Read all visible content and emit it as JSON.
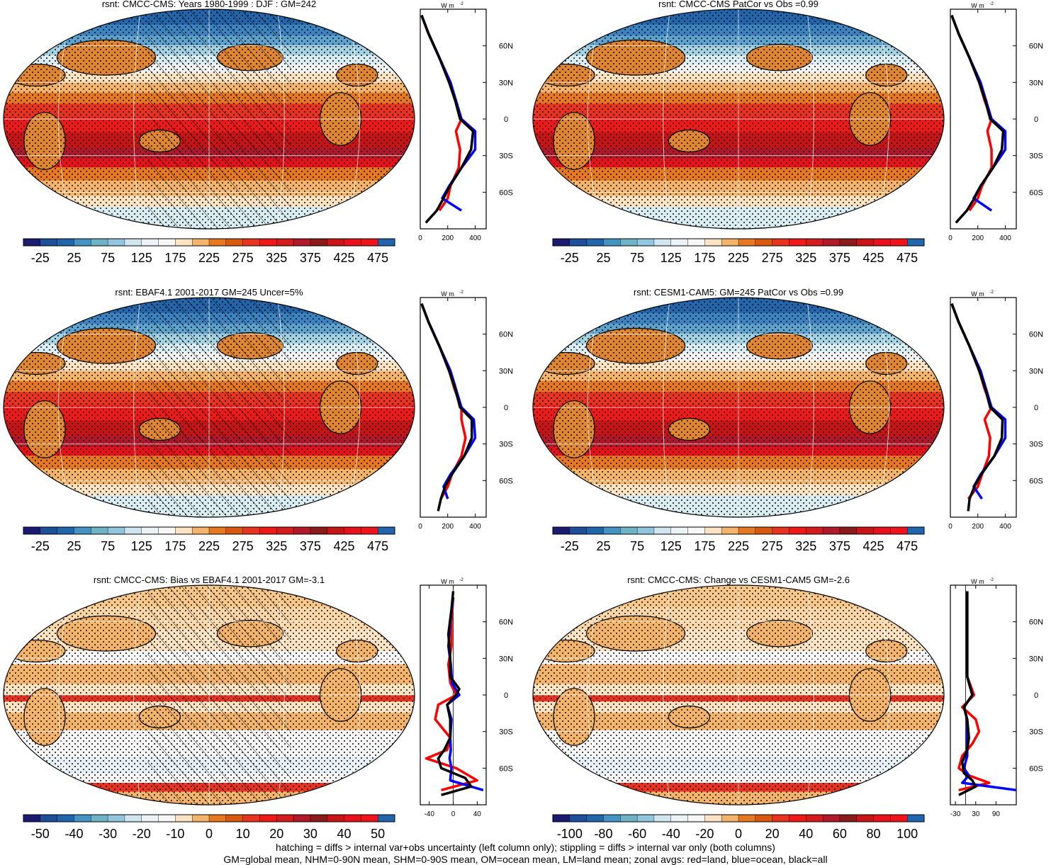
{
  "figure": {
    "footer_line1": "hatching = diffs > internal var+obs uncertainty (left column only); stippling = diffs > internal var only (both columns)",
    "footer_line2": "GM=global mean, NHM=0-90N mean, SHM=0-90S mean, OM=ocean mean, LM=land mean; zonal avgs: red=land, blue=ocean, black=all"
  },
  "colormaps": {
    "absolute": [
      "#1b1b6f",
      "#1d4f9a",
      "#2166ac",
      "#4393c3",
      "#6fb3c6",
      "#92c5de",
      "#d1e5f0",
      "#ecf3f7",
      "#f7f7f7",
      "#fbe3c4",
      "#f4b56b",
      "#e6791f",
      "#d8590e",
      "#e8331f",
      "#ef1a18",
      "#d51c1c",
      "#b2182b",
      "#8b1a1a",
      "#c81414",
      "#e8101a",
      "#f0141a",
      "#2166ac"
    ],
    "difference": [
      "#1b1b6f",
      "#1d4f9a",
      "#2166ac",
      "#4393c3",
      "#6fb3c6",
      "#92c5de",
      "#d1e5f0",
      "#ecf3f7",
      "#f7f7f7",
      "#fbe3c4",
      "#f4b56b",
      "#e6791f",
      "#d8590e",
      "#e8331f",
      "#ef1a18",
      "#d51c1c",
      "#b2182b",
      "#8b1a1a",
      "#c81414",
      "#e8101a",
      "#f0141a",
      "#2166ac"
    ],
    "line_colors": {
      "land": "#ff0000",
      "ocean": "#0000ff",
      "all": "#000000"
    }
  },
  "chart_data": [
    {
      "type": "heatmap",
      "title": "rsnt: CMCC-CMS: Years 1980-1999 : DJF : GM=242",
      "map_kind": "absolute",
      "hatching": true,
      "stippling": true,
      "colorbar_ticks": [
        "-25",
        "25",
        "75",
        "125",
        "175",
        "225",
        "275",
        "325",
        "375",
        "425",
        "475"
      ],
      "zonal": {
        "type": "line",
        "unit": "W m",
        "unit_sup": "-2",
        "xticks": [
          "0",
          "200",
          "400"
        ],
        "xlim": [
          0,
          480
        ],
        "yticks": [
          "60N",
          "30N",
          "0",
          "30S",
          "60S"
        ],
        "ylim": [
          -90,
          90
        ],
        "series": [
          {
            "name": "land",
            "lat": [
              -75,
              -65,
              -55,
              -40,
              -25,
              -10,
              0,
              15,
              30,
              50,
              70,
              85
            ],
            "values": [
              140,
              200,
              220,
              280,
              290,
              260,
              300,
              260,
              220,
              140,
              60,
              10
            ]
          },
          {
            "name": "ocean",
            "lat": [
              -75,
              -65,
              -55,
              -40,
              -25,
              -10,
              0,
              15,
              30,
              50,
              70,
              85
            ],
            "values": [
              300,
              160,
              210,
              300,
              400,
              400,
              300,
              260,
              220,
              140,
              60,
              10
            ]
          },
          {
            "name": "all",
            "lat": [
              -85,
              -75,
              -65,
              -55,
              -40,
              -25,
              -10,
              0,
              15,
              30,
              50,
              70,
              85
            ],
            "values": [
              40,
              120,
              170,
              215,
              300,
              370,
              385,
              290,
              255,
              210,
              140,
              60,
              10
            ]
          }
        ]
      }
    },
    {
      "type": "heatmap",
      "title": "rsnt: CMCC-CMS PatCor vs Obs =0.99",
      "map_kind": "absolute",
      "hatching": false,
      "stippling": true,
      "colorbar_ticks": [
        "-25",
        "25",
        "75",
        "125",
        "175",
        "225",
        "275",
        "325",
        "375",
        "425",
        "475"
      ],
      "zonal": {
        "type": "line",
        "unit": "W m",
        "unit_sup": "-2",
        "xticks": [
          "0",
          "200",
          "400"
        ],
        "xlim": [
          0,
          480
        ],
        "yticks": [
          "60N",
          "30N",
          "0",
          "30S",
          "60S"
        ],
        "ylim": [
          -90,
          90
        ],
        "series": [
          {
            "name": "land",
            "lat": [
              -75,
              -65,
              -55,
              -40,
              -25,
              -10,
              0,
              15,
              30,
              50,
              70,
              85
            ],
            "values": [
              140,
              200,
              230,
              300,
              300,
              270,
              300,
              250,
              210,
              140,
              60,
              10
            ]
          },
          {
            "name": "ocean",
            "lat": [
              -75,
              -65,
              -55,
              -40,
              -25,
              -10,
              0,
              15,
              30,
              50,
              70,
              85
            ],
            "values": [
              300,
              170,
              220,
              310,
              400,
              400,
              300,
              260,
              220,
              140,
              60,
              10
            ]
          },
          {
            "name": "all",
            "lat": [
              -85,
              -75,
              -65,
              -55,
              -40,
              -25,
              -10,
              0,
              15,
              30,
              50,
              70,
              85
            ],
            "values": [
              40,
              120,
              175,
              220,
              310,
              375,
              385,
              290,
              255,
              210,
              140,
              60,
              10
            ]
          }
        ]
      }
    },
    {
      "type": "heatmap",
      "title": "rsnt: EBAF4.1 2001-2017 GM=245 Uncer=5%",
      "map_kind": "absolute",
      "hatching": true,
      "stippling": true,
      "colorbar_ticks": [
        "-25",
        "25",
        "75",
        "125",
        "175",
        "225",
        "275",
        "325",
        "375",
        "425",
        "475"
      ],
      "zonal": {
        "type": "line",
        "unit": "W m",
        "unit_sup": "-2",
        "xticks": [
          "0",
          "200",
          "400"
        ],
        "xlim": [
          0,
          480
        ],
        "yticks": [
          "60N",
          "30N",
          "0",
          "30S",
          "60S"
        ],
        "ylim": [
          -90,
          90
        ],
        "series": [
          {
            "name": "land",
            "lat": [
              -75,
              -65,
              -55,
              -40,
              -25,
              -10,
              0,
              15,
              30,
              50,
              70,
              85
            ],
            "values": [
              150,
              200,
              230,
              300,
              330,
              300,
              300,
              250,
              210,
              140,
              60,
              10
            ]
          },
          {
            "name": "ocean",
            "lat": [
              -75,
              -65,
              -55,
              -40,
              -25,
              -10,
              0,
              15,
              30,
              50,
              70,
              85
            ],
            "values": [
              200,
              170,
              220,
              320,
              400,
              390,
              300,
              260,
              220,
              140,
              60,
              10
            ]
          },
          {
            "name": "all",
            "lat": [
              -85,
              -75,
              -65,
              -55,
              -40,
              -25,
              -10,
              0,
              15,
              30,
              50,
              70,
              85
            ],
            "values": [
              130,
              150,
              180,
              230,
              320,
              375,
              375,
              290,
              255,
              210,
              140,
              60,
              10
            ]
          }
        ]
      }
    },
    {
      "type": "heatmap",
      "title": "rsnt: CESM1-CAM5: GM=245 PatCor vs Obs =0.99",
      "map_kind": "absolute",
      "hatching": false,
      "stippling": true,
      "colorbar_ticks": [
        "-25",
        "25",
        "75",
        "125",
        "175",
        "225",
        "275",
        "325",
        "375",
        "425",
        "475"
      ],
      "zonal": {
        "type": "line",
        "unit": "W m",
        "unit_sup": "-2",
        "xticks": [
          "0",
          "200",
          "400"
        ],
        "xlim": [
          0,
          480
        ],
        "yticks": [
          "60N",
          "30N",
          "0",
          "30S",
          "60S"
        ],
        "ylim": [
          -90,
          90
        ],
        "series": [
          {
            "name": "land",
            "lat": [
              -75,
              -65,
              -55,
              -40,
              -25,
              -10,
              0,
              15,
              30,
              50,
              70,
              85
            ],
            "values": [
              130,
              200,
              230,
              280,
              290,
              250,
              300,
              250,
              210,
              140,
              60,
              10
            ]
          },
          {
            "name": "ocean",
            "lat": [
              -75,
              -65,
              -55,
              -40,
              -25,
              -10,
              0,
              15,
              30,
              50,
              70,
              85
            ],
            "values": [
              230,
              170,
              220,
              320,
              400,
              400,
              300,
              260,
              220,
              140,
              60,
              10
            ]
          },
          {
            "name": "all",
            "lat": [
              -85,
              -75,
              -65,
              -55,
              -40,
              -25,
              -10,
              0,
              15,
              30,
              50,
              70,
              85
            ],
            "values": [
              130,
              140,
              175,
              225,
              320,
              375,
              380,
              290,
              255,
              210,
              140,
              60,
              10
            ]
          }
        ]
      }
    },
    {
      "type": "heatmap",
      "title": "rsnt: CMCC-CMS: Bias vs EBAF4.1 2001-2017 GM=-3.1",
      "map_kind": "difference",
      "hatching": true,
      "stippling": true,
      "colorbar_ticks": [
        "-50",
        "-40",
        "-30",
        "-20",
        "-10",
        "0",
        "10",
        "20",
        "30",
        "40",
        "50"
      ],
      "zonal": {
        "type": "line",
        "unit": "W m",
        "unit_sup": "-2",
        "xticks": [
          "-40",
          "0",
          "40"
        ],
        "xlim": [
          -55,
          55
        ],
        "yticks": [
          "60N",
          "30N",
          "0",
          "30S",
          "60S"
        ],
        "ylim": [
          -90,
          90
        ],
        "series": [
          {
            "name": "land",
            "lat": [
              -78,
              -70,
              -60,
              -52,
              -45,
              -35,
              -20,
              -8,
              0,
              10,
              25,
              40,
              60,
              80
            ],
            "values": [
              -20,
              40,
              5,
              -45,
              -10,
              -5,
              -30,
              -25,
              5,
              -5,
              -8,
              -3,
              -3,
              0
            ]
          },
          {
            "name": "ocean",
            "lat": [
              -78,
              -70,
              -60,
              -52,
              -45,
              -35,
              -20,
              -8,
              0,
              10,
              25,
              40,
              60,
              80
            ],
            "values": [
              50,
              -5,
              -3,
              -6,
              -4,
              -5,
              -3,
              -10,
              10,
              -2,
              -4,
              -8,
              -5,
              0
            ]
          },
          {
            "name": "all",
            "lat": [
              -82,
              -75,
              -68,
              -60,
              -52,
              -45,
              -35,
              -20,
              -8,
              0,
              5,
              15,
              30,
              50,
              70,
              85
            ],
            "values": [
              -20,
              30,
              20,
              -20,
              -25,
              -15,
              -5,
              -5,
              -10,
              5,
              10,
              -5,
              -5,
              -8,
              -3,
              0
            ]
          }
        ]
      }
    },
    {
      "type": "heatmap",
      "title": "rsnt: CMCC-CMS: Change vs CESM1-CAM5 GM=-2.6",
      "map_kind": "difference",
      "hatching": false,
      "stippling": true,
      "colorbar_ticks": [
        "-100",
        "-80",
        "-60",
        "-40",
        "-20",
        "0",
        "20",
        "40",
        "60",
        "80",
        "100"
      ],
      "zonal": {
        "type": "line",
        "unit": "W m",
        "unit_sup": "-2",
        "xticks": [
          "-30",
          "30",
          "90"
        ],
        "xlim": [
          -45,
          150
        ],
        "yticks": [
          "60N",
          "30N",
          "0",
          "30S",
          "60S"
        ],
        "ylim": [
          -90,
          90
        ],
        "series": [
          {
            "name": "land",
            "lat": [
              -78,
              -72,
              -66,
              -60,
              -50,
              -40,
              -30,
              -20,
              -10,
              0,
              15,
              30,
              50,
              70,
              85
            ],
            "values": [
              -20,
              70,
              10,
              -20,
              -10,
              20,
              40,
              30,
              -10,
              25,
              5,
              5,
              5,
              5,
              5
            ]
          },
          {
            "name": "ocean",
            "lat": [
              -78,
              -72,
              -66,
              -60,
              -50,
              -40,
              -30,
              -20,
              -10,
              0,
              15,
              30,
              50,
              70,
              85
            ],
            "values": [
              150,
              -10,
              10,
              -5,
              5,
              5,
              5,
              5,
              -5,
              20,
              5,
              5,
              5,
              5,
              5
            ]
          },
          {
            "name": "all",
            "lat": [
              -82,
              -75,
              -70,
              -64,
              -55,
              -45,
              -35,
              -20,
              -10,
              0,
              15,
              30,
              50,
              70,
              85
            ],
            "values": [
              -20,
              30,
              20,
              -5,
              -10,
              5,
              10,
              5,
              -5,
              20,
              5,
              5,
              5,
              5,
              5
            ]
          }
        ]
      }
    }
  ]
}
